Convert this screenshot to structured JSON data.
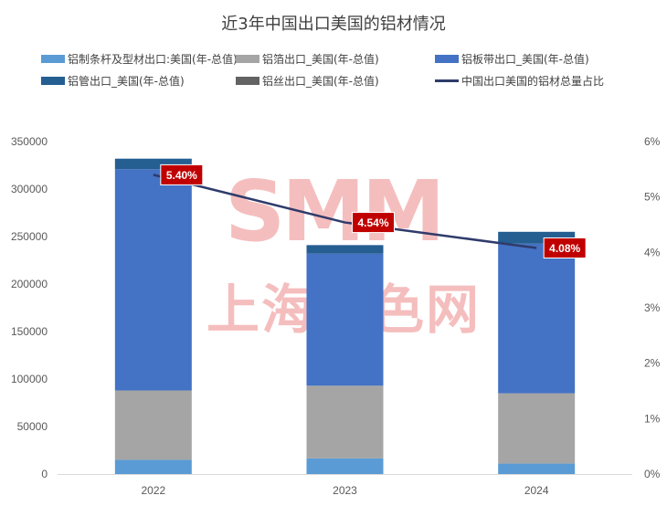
{
  "watermark": {
    "top": "SMM",
    "bottom": "上海有色网"
  },
  "chart_data": {
    "type": "bar",
    "stacked": true,
    "title": "近3年中国出口美国的铝材情况",
    "categories": [
      "2022",
      "2023",
      "2024"
    ],
    "series": [
      {
        "name": "铝制条杆及型材出口:美国(年-总值)",
        "color": "#5b9bd5",
        "values": [
          15000,
          16500,
          11000
        ]
      },
      {
        "name": "铝箔出口_美国(年-总值)",
        "color": "#a5a5a5",
        "values": [
          73000,
          76500,
          74000
        ]
      },
      {
        "name": "铝板带出口_美国(年-总值)",
        "color": "#4472c4",
        "values": [
          233000,
          139000,
          157500
        ]
      },
      {
        "name": "铝管出口_美国(年-总值)",
        "color": "#255e91",
        "values": [
          11000,
          9000,
          12500
        ]
      },
      {
        "name": "铝丝出口_美国(年-总值)",
        "color": "#636363",
        "values": [
          0,
          0,
          0
        ]
      }
    ],
    "line_series": {
      "name": "中国出口美国的铝材总量占比",
      "color": "#2f3b6b",
      "axis": "right",
      "values": [
        5.4,
        4.54,
        4.08
      ],
      "labels": [
        "5.40%",
        "4.54%",
        "4.08%"
      ],
      "label_bg": "#c00000"
    },
    "y_left": {
      "min": 0,
      "max": 350000,
      "ticks": [
        "0",
        "50000",
        "100000",
        "150000",
        "200000",
        "250000",
        "300000",
        "350000"
      ]
    },
    "y_right": {
      "min": 0,
      "max": 6,
      "ticks": [
        "0%",
        "1%",
        "2%",
        "3%",
        "4%",
        "5%",
        "6%"
      ]
    },
    "grid": false,
    "legend_position": "top"
  }
}
